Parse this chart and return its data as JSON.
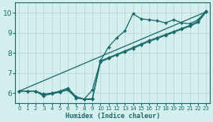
{
  "xlabel": "Humidex (Indice chaleur)",
  "xlim": [
    -0.5,
    23.5
  ],
  "ylim": [
    5.5,
    10.5
  ],
  "xticks": [
    0,
    1,
    2,
    3,
    4,
    5,
    6,
    7,
    8,
    9,
    10,
    11,
    12,
    13,
    14,
    15,
    16,
    17,
    18,
    19,
    20,
    21,
    22,
    23
  ],
  "yticks": [
    6,
    7,
    8,
    9,
    10
  ],
  "bg_color": "#d5eeee",
  "grid_color": "#b8d8d8",
  "line_color": "#1a6b6b",
  "line1_x": [
    0,
    1,
    2,
    3,
    4,
    5,
    6,
    7,
    8,
    9,
    10,
    11,
    12,
    13,
    14,
    15,
    16,
    17,
    18,
    19,
    20,
    21,
    22,
    23
  ],
  "line1_y": [
    6.1,
    6.1,
    6.1,
    5.85,
    6.0,
    6.05,
    6.15,
    5.75,
    5.7,
    6.15,
    7.6,
    8.3,
    8.75,
    9.1,
    9.95,
    9.7,
    9.65,
    9.6,
    9.5,
    9.65,
    9.5,
    9.45,
    9.65,
    10.1
  ],
  "line2_x": [
    0,
    1,
    2,
    3,
    4,
    5,
    6,
    7,
    8,
    9,
    10,
    11,
    12,
    13,
    14,
    15,
    16,
    17,
    18,
    19,
    20,
    21,
    22,
    23
  ],
  "line2_y": [
    6.1,
    6.1,
    6.1,
    5.9,
    5.95,
    6.05,
    6.2,
    5.8,
    5.68,
    5.68,
    7.55,
    7.72,
    7.9,
    8.05,
    8.22,
    8.4,
    8.57,
    8.72,
    8.87,
    9.02,
    9.18,
    9.33,
    9.52,
    10.05
  ],
  "line3_x": [
    0,
    1,
    2,
    3,
    4,
    5,
    6,
    7,
    8,
    9,
    10,
    11,
    12,
    13,
    14,
    15,
    16,
    17,
    18,
    19,
    20,
    21,
    22,
    23
  ],
  "line3_y": [
    6.1,
    6.1,
    6.1,
    5.95,
    6.0,
    6.1,
    6.25,
    5.82,
    5.7,
    5.72,
    7.6,
    7.77,
    7.93,
    8.1,
    8.27,
    8.45,
    8.62,
    8.77,
    8.92,
    9.07,
    9.22,
    9.37,
    9.57,
    10.05
  ],
  "line4_x": [
    0,
    23
  ],
  "line4_y": [
    6.1,
    10.05
  ]
}
